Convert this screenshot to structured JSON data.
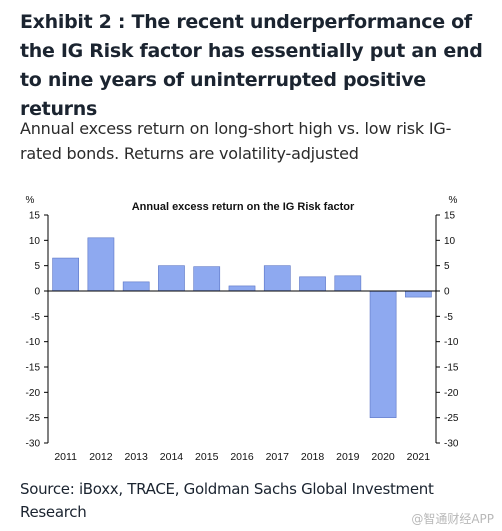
{
  "headline": "Exhibit 2 : The recent underperformance of the IG Risk factor has essentially put an end to nine years of uninterrupted positive returns",
  "subhead": "Annual excess return on long-short high vs. low risk IG-rated bonds. Returns are volatility-adjusted",
  "source": "Source: iBoxx, TRACE, Goldman Sachs Global Investment Research",
  "watermark": "@智通财经APP",
  "colors": {
    "bar": "#8ea9f0",
    "bar_edge": "#5b74c4",
    "axis": "#000000",
    "text": "#1b2430"
  },
  "chart_data": {
    "type": "bar",
    "title": "Annual excess return on the IG Risk factor",
    "ylabel_left": "%",
    "ylabel_right": "%",
    "categories": [
      "2011",
      "2012",
      "2013",
      "2014",
      "2015",
      "2016",
      "2017",
      "2018",
      "2019",
      "2020",
      "2021"
    ],
    "values": [
      6.5,
      10.5,
      1.8,
      5.0,
      4.8,
      1.0,
      5.0,
      2.8,
      3.0,
      -25.0,
      -1.2
    ],
    "ylim": [
      -30,
      15
    ],
    "yticks": [
      15,
      10,
      5,
      0,
      -5,
      -10,
      -15,
      -20,
      -25,
      -30
    ],
    "grid": false,
    "legend": "none"
  }
}
